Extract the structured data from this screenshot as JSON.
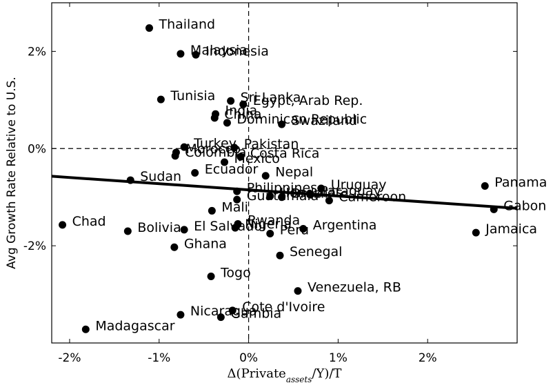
{
  "chart_data": {
    "type": "scatter",
    "title": "",
    "xlabel_parts": [
      "Δ(Private",
      "assets",
      "/Y)/T"
    ],
    "ylabel": "Avg Growth Rate Relative to U.S.",
    "xlim": [
      -2.2,
      3.0
    ],
    "ylim": [
      -4.0,
      3.0
    ],
    "x_ticks": [
      {
        "value": -2,
        "label": "-2%"
      },
      {
        "value": -1,
        "label": "-1%"
      },
      {
        "value": 0,
        "label": "0%"
      },
      {
        "value": 1,
        "label": "1%"
      },
      {
        "value": 2,
        "label": "2%"
      }
    ],
    "y_ticks": [
      {
        "value": 2,
        "label": "2%"
      },
      {
        "value": 0,
        "label": "0%"
      },
      {
        "value": -2,
        "label": "-2%"
      }
    ],
    "reference_lines": {
      "x": 0,
      "y": 0,
      "style": "dashed"
    },
    "fit_line": {
      "x": [
        -2.2,
        3.0
      ],
      "y": [
        -0.57,
        -1.23
      ]
    },
    "points": [
      {
        "label": "Thailand",
        "x": -1.11,
        "y": 2.48
      },
      {
        "label": "Malaysia",
        "x": -0.76,
        "y": 1.95
      },
      {
        "label": "Indonesia",
        "x": -0.59,
        "y": 1.93
      },
      {
        "label": "Tunisia",
        "x": -0.98,
        "y": 1.01
      },
      {
        "label": "Sri Lanka",
        "x": -0.2,
        "y": 0.98
      },
      {
        "label": "Egypt, Arab Rep.",
        "x": -0.06,
        "y": 0.91
      },
      {
        "label": "India",
        "x": -0.37,
        "y": 0.71
      },
      {
        "label": "China",
        "x": -0.38,
        "y": 0.63
      },
      {
        "label": "Dominican Republic",
        "x": -0.24,
        "y": 0.53
      },
      {
        "label": "Swaziland",
        "x": 0.37,
        "y": 0.5
      },
      {
        "label": "Turkey",
        "x": -0.72,
        "y": 0.03
      },
      {
        "label": "Pakistan",
        "x": -0.16,
        "y": 0.02
      },
      {
        "label": "Morocco",
        "x": -0.81,
        "y": -0.08
      },
      {
        "label": "Colombia",
        "x": -0.82,
        "y": -0.15
      },
      {
        "label": "Costa Rica",
        "x": -0.09,
        "y": -0.17
      },
      {
        "label": "Mexico",
        "x": -0.27,
        "y": -0.28
      },
      {
        "label": "Ecuador",
        "x": -0.6,
        "y": -0.5
      },
      {
        "label": "Sudan",
        "x": -1.32,
        "y": -0.65
      },
      {
        "label": "Nepal",
        "x": 0.19,
        "y": -0.56
      },
      {
        "label": "Philippines",
        "x": -0.13,
        "y": -0.88
      },
      {
        "label": "Uruguay",
        "x": 0.81,
        "y": -0.82
      },
      {
        "label": "Guatemala",
        "x": -0.13,
        "y": -1.05
      },
      {
        "label": "Honduras",
        "x": 0.24,
        "y": -0.98
      },
      {
        "label": "Brazil",
        "x": 0.37,
        "y": -1.0
      },
      {
        "label": "Paraguay",
        "x": 0.69,
        "y": -0.95
      },
      {
        "label": "Cameroon",
        "x": 0.9,
        "y": -1.07
      },
      {
        "label": "Mali",
        "x": -0.41,
        "y": -1.28
      },
      {
        "label": "Panama",
        "x": 2.64,
        "y": -0.77
      },
      {
        "label": "Gabon",
        "x": 2.74,
        "y": -1.25
      },
      {
        "label": "Chad",
        "x": -2.08,
        "y": -1.57
      },
      {
        "label": "Bolivia",
        "x": -1.35,
        "y": -1.7
      },
      {
        "label": "El Salvador",
        "x": -0.72,
        "y": -1.67
      },
      {
        "label": "Rwanda",
        "x": -0.12,
        "y": -1.55
      },
      {
        "label": "Nigeria",
        "x": -0.15,
        "y": -1.63
      },
      {
        "label": "Peru",
        "x": 0.24,
        "y": -1.75
      },
      {
        "label": "Argentina",
        "x": 0.61,
        "y": -1.65
      },
      {
        "label": "Jamaica",
        "x": 2.54,
        "y": -1.73
      },
      {
        "label": "Ghana",
        "x": -0.83,
        "y": -2.03
      },
      {
        "label": "Senegal",
        "x": 0.35,
        "y": -2.2
      },
      {
        "label": "Togo",
        "x": -0.42,
        "y": -2.63
      },
      {
        "label": "Venezuela, RB",
        "x": 0.55,
        "y": -2.93
      },
      {
        "label": "Cote d'Ivoire",
        "x": -0.18,
        "y": -3.33
      },
      {
        "label": "Nicaragua",
        "x": -0.76,
        "y": -3.42
      },
      {
        "label": "Gambia",
        "x": -0.31,
        "y": -3.47
      },
      {
        "label": "Madagascar",
        "x": -1.82,
        "y": -3.72
      }
    ]
  }
}
